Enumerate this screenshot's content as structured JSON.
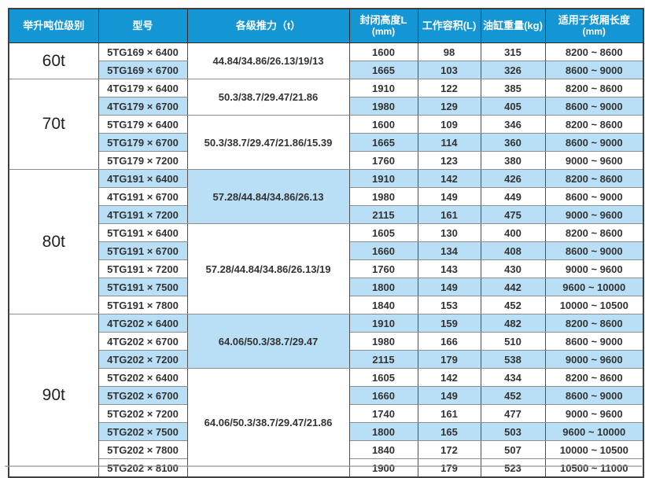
{
  "colors": {
    "header_bg": "#1496d5",
    "header_text": "#ffffff",
    "stripe_blue": "#b8dff5",
    "stripe_white": "#ffffff",
    "grid_line": "#8d8d8d",
    "col_line": "#4f4f4f",
    "frame": "#3f3f3f",
    "text": "#333333",
    "shadow": "#969696",
    "page_bg": "#fcfcfc"
  },
  "table": {
    "columns": [
      {
        "label": "举升吨位级别",
        "sub": ""
      },
      {
        "label": "型号",
        "sub": ""
      },
      {
        "label": "各级推力（t）",
        "sub": ""
      },
      {
        "label": "封闭高度L",
        "sub": "(mm)"
      },
      {
        "label": "工作容积(L)",
        "sub": ""
      },
      {
        "label": "油缸重量(kg)",
        "sub": ""
      },
      {
        "label": "适用于货厢长度",
        "sub": "(mm)"
      }
    ],
    "groups": [
      {
        "tonnage": "60t",
        "subgroups": [
          {
            "thrust": "44.84/34.86/26.13/19/13",
            "thrust_bg": "white",
            "rows": [
              {
                "model": "5TG169 × 6400",
                "closed_height": "1600",
                "working_volume": "98",
                "weight": "315",
                "cargo_length": "8200 ~ 8600",
                "stripe": "white"
              },
              {
                "model": "5TG169 × 6700",
                "closed_height": "1665",
                "working_volume": "103",
                "weight": "326",
                "cargo_length": "8600 ~ 9000",
                "stripe": "blue"
              }
            ]
          }
        ]
      },
      {
        "tonnage": "70t",
        "subgroups": [
          {
            "thrust": "50.3/38.7/29.47/21.86",
            "thrust_bg": "white",
            "rows": [
              {
                "model": "4TG179 × 6400",
                "closed_height": "1910",
                "working_volume": "122",
                "weight": "385",
                "cargo_length": "8200 ~ 8600",
                "stripe": "white"
              },
              {
                "model": "4TG179 × 6700",
                "closed_height": "1980",
                "working_volume": "129",
                "weight": "405",
                "cargo_length": "8600 ~ 9000",
                "stripe": "blue"
              }
            ]
          },
          {
            "thrust": "50.3/38.7/29.47/21.86/15.39",
            "thrust_bg": "white",
            "rows": [
              {
                "model": "5TG179 × 6400",
                "closed_height": "1600",
                "working_volume": "109",
                "weight": "346",
                "cargo_length": "8200 ~ 8600",
                "stripe": "white"
              },
              {
                "model": "5TG179 × 6700",
                "closed_height": "1665",
                "working_volume": "114",
                "weight": "360",
                "cargo_length": "8600 ~ 9000",
                "stripe": "blue"
              },
              {
                "model": "5TG179 × 7200",
                "closed_height": "1760",
                "working_volume": "123",
                "weight": "380",
                "cargo_length": "9000 ~ 9600",
                "stripe": "white"
              }
            ]
          }
        ]
      },
      {
        "tonnage": "80t",
        "subgroups": [
          {
            "thrust": "57.28/44.84/34.86/26.13",
            "thrust_bg": "blue",
            "rows": [
              {
                "model": "4TG191 × 6400",
                "closed_height": "1910",
                "working_volume": "142",
                "weight": "426",
                "cargo_length": "8200 ~ 8600",
                "stripe": "blue"
              },
              {
                "model": "4TG191 × 6700",
                "closed_height": "1980",
                "working_volume": "149",
                "weight": "449",
                "cargo_length": "8600 ~ 9000",
                "stripe": "white"
              },
              {
                "model": "4TG191 × 7200",
                "closed_height": "2115",
                "working_volume": "161",
                "weight": "475",
                "cargo_length": "9000 ~ 9600",
                "stripe": "blue"
              }
            ]
          },
          {
            "thrust": "57.28/44.84/34.86/26.13/19",
            "thrust_bg": "white",
            "rows": [
              {
                "model": "5TG191 × 6400",
                "closed_height": "1605",
                "working_volume": "130",
                "weight": "400",
                "cargo_length": "8200 ~ 8600",
                "stripe": "white"
              },
              {
                "model": "5TG191 × 6700",
                "closed_height": "1660",
                "working_volume": "134",
                "weight": "408",
                "cargo_length": "8600 ~ 9000",
                "stripe": "blue"
              },
              {
                "model": "5TG191 × 7200",
                "closed_height": "1760",
                "working_volume": "143",
                "weight": "430",
                "cargo_length": "9000 ~ 9600",
                "stripe": "white"
              },
              {
                "model": "5TG191 × 7500",
                "closed_height": "1800",
                "working_volume": "149",
                "weight": "442",
                "cargo_length": "9600 ~ 10000",
                "stripe": "blue"
              },
              {
                "model": "5TG191 × 7800",
                "closed_height": "1840",
                "working_volume": "153",
                "weight": "452",
                "cargo_length": "10000 ~ 10500",
                "stripe": "white"
              }
            ]
          }
        ]
      },
      {
        "tonnage": "90t",
        "subgroups": [
          {
            "thrust": "64.06/50.3/38.7/29.47",
            "thrust_bg": "blue",
            "rows": [
              {
                "model": "4TG202 × 6400",
                "closed_height": "1910",
                "working_volume": "159",
                "weight": "482",
                "cargo_length": "8200 ~ 8600",
                "stripe": "blue"
              },
              {
                "model": "4TG202 × 6700",
                "closed_height": "1980",
                "working_volume": "166",
                "weight": "510",
                "cargo_length": "8600 ~ 9000",
                "stripe": "white"
              },
              {
                "model": "4TG202 × 7200",
                "closed_height": "2115",
                "working_volume": "179",
                "weight": "538",
                "cargo_length": "9000 ~ 9600",
                "stripe": "blue"
              }
            ]
          },
          {
            "thrust": "64.06/50.3/38.7/29.47/21.86",
            "thrust_bg": "white",
            "rows": [
              {
                "model": "5TG202 × 6400",
                "closed_height": "1605",
                "working_volume": "142",
                "weight": "434",
                "cargo_length": "8200 ~ 8600",
                "stripe": "white"
              },
              {
                "model": "5TG202 × 6700",
                "closed_height": "1660",
                "working_volume": "149",
                "weight": "452",
                "cargo_length": "8600 ~ 9000",
                "stripe": "blue"
              },
              {
                "model": "5TG202 × 7200",
                "closed_height": "1740",
                "working_volume": "161",
                "weight": "477",
                "cargo_length": "9000 ~ 9600",
                "stripe": "white"
              },
              {
                "model": "5TG202 × 7500",
                "closed_height": "1800",
                "working_volume": "165",
                "weight": "503",
                "cargo_length": "9600 ~ 10000",
                "stripe": "blue"
              },
              {
                "model": "5TG202 × 7800",
                "closed_height": "1840",
                "working_volume": "172",
                "weight": "507",
                "cargo_length": "10000 ~ 10500",
                "stripe": "white"
              },
              {
                "model": "5TG202 × 8100",
                "closed_height": "1900",
                "working_volume": "179",
                "weight": "523",
                "cargo_length": "10500 ~ 11000",
                "stripe": "white"
              }
            ]
          }
        ]
      }
    ]
  }
}
